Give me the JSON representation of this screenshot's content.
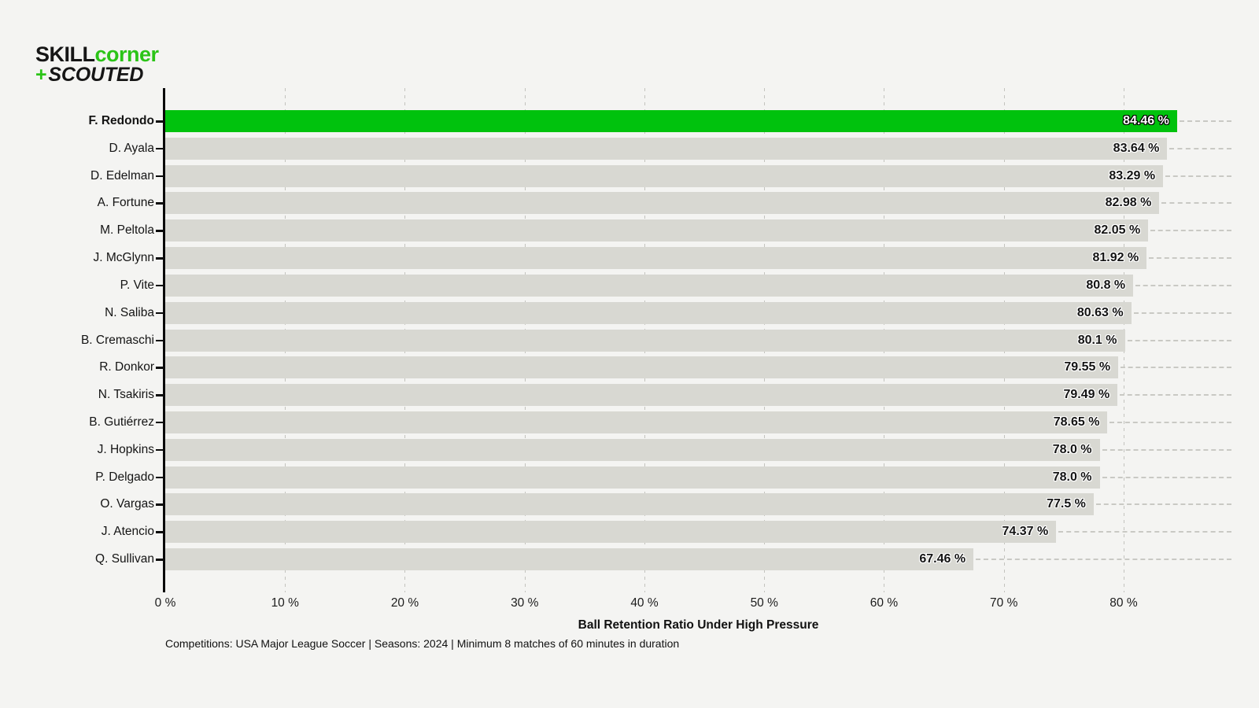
{
  "logo": {
    "skill": "SKILL",
    "corner": "corner",
    "plus": "+",
    "scouted": "SCOUTED"
  },
  "chart_data": {
    "type": "bar",
    "orientation": "horizontal",
    "title": "",
    "xlabel": "Ball Retention Ratio Under High Pressure",
    "ylabel": "",
    "categories": [
      "F. Redondo",
      "D. Ayala",
      "D. Edelman",
      "A. Fortune",
      "M. Peltola",
      "J. McGlynn",
      "P. Vite",
      "N. Saliba",
      "B. Cremaschi",
      "R. Donkor",
      "N. Tsakiris",
      "B. Gutiérrez",
      "J. Hopkins",
      "P. Delgado",
      "O. Vargas",
      "J. Atencio",
      "Q. Sullivan"
    ],
    "values": [
      84.46,
      83.64,
      83.29,
      82.98,
      82.05,
      81.92,
      80.8,
      80.63,
      80.1,
      79.55,
      79.49,
      78.65,
      78.0,
      78.0,
      77.5,
      74.37,
      67.46
    ],
    "value_labels": [
      "84.46 %",
      "83.64 %",
      "83.29 %",
      "82.98 %",
      "82.05 %",
      "81.92 %",
      "80.8 %",
      "80.63 %",
      "80.1 %",
      "79.55 %",
      "79.49 %",
      "78.65 %",
      "78.0 %",
      "78.0 %",
      "77.5 %",
      "74.37 %",
      "67.46 %"
    ],
    "highlight_index": 0,
    "x_ticks": [
      {
        "value": 0,
        "label": "0 %"
      },
      {
        "value": 10,
        "label": "10 %"
      },
      {
        "value": 20,
        "label": "20 %"
      },
      {
        "value": 30,
        "label": "30 %"
      },
      {
        "value": 40,
        "label": "40 %"
      },
      {
        "value": 50,
        "label": "50 %"
      },
      {
        "value": 60,
        "label": "60 %"
      },
      {
        "value": 70,
        "label": "70 %"
      },
      {
        "value": 80,
        "label": "80 %"
      }
    ],
    "xlim": [
      0,
      89
    ],
    "grid": "vertical-dashed",
    "legend": "none",
    "bar_color": "#d8d8d2",
    "highlight_color": "#00c20d"
  },
  "colors": {
    "background": "#f4f4f2",
    "logo_green": "#2bc417",
    "text": "#141414",
    "grid": "#c3c3be"
  },
  "footer": {
    "text": "Competitions: USA Major League Soccer | Seasons: 2024 | Minimum 8 matches of 60 minutes in duration"
  }
}
